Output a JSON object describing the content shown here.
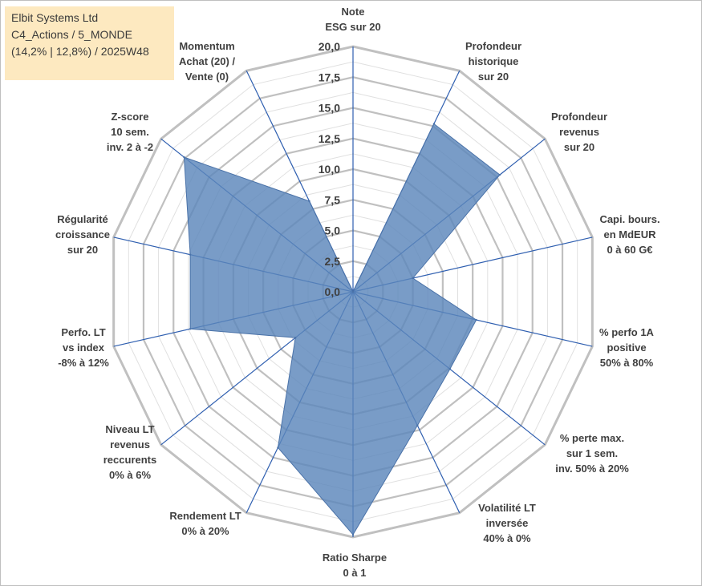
{
  "title": {
    "line1": "Elbit Systems Ltd",
    "line2": "C4_Actions / 5_MONDE",
    "line3": "(14,2% | 12,8%) / 2025W48"
  },
  "colors": {
    "fill": "#5b86bb",
    "stroke": "#4a72a8",
    "grid_major": "#c0c0c0",
    "grid_minor": "#e0e0e0",
    "spoke": "#2f5fb0",
    "title_bg": "#fde9c0"
  },
  "chart_data": {
    "type": "radar",
    "title": "Elbit Systems Ltd",
    "rmin": 0,
    "rmax": 20,
    "ticks": [
      "0,0",
      "2,5",
      "5,0",
      "7,5",
      "10,0",
      "12,5",
      "15,0",
      "17,5",
      "20,0"
    ],
    "categories": [
      [
        "Note",
        "ESG sur 20"
      ],
      [
        "Profondeur",
        "historique",
        "sur 20"
      ],
      [
        "Profondeur",
        "revenus",
        "sur 20"
      ],
      [
        "Capi. bours.",
        "en MdEUR",
        "0 à 60 G€"
      ],
      [
        "% perfo 1A",
        "positive",
        "50% à 80%"
      ],
      [
        "% perte max.",
        "sur 1 sem.",
        "inv. 50% à 20%"
      ],
      [
        "Volatilité LT",
        "inversée",
        "40% à 0%"
      ],
      [
        "Ratio Sharpe",
        "0 à 1"
      ],
      [
        "Rendement LT",
        "0% à 20%"
      ],
      [
        "Niveau LT",
        "revenus",
        "reccurents",
        "0% à 6%"
      ],
      [
        "Perfo. LT",
        "vs index",
        "-8% à 12%"
      ],
      [
        "Régularité",
        "croissance",
        "sur 20"
      ],
      [
        "Z-score",
        "10 sem.",
        "inv. 2 à -2"
      ],
      [
        "Momentum",
        "Achat (20) /",
        "Vente (0)"
      ]
    ],
    "series": [
      {
        "name": "Elbit Systems Ltd",
        "values": [
          0.0,
          15.2,
          15.3,
          5.0,
          10.3,
          10.1,
          12.1,
          19.8,
          14.1,
          6.0,
          13.6,
          13.6,
          17.6,
          8.2
        ]
      }
    ]
  }
}
